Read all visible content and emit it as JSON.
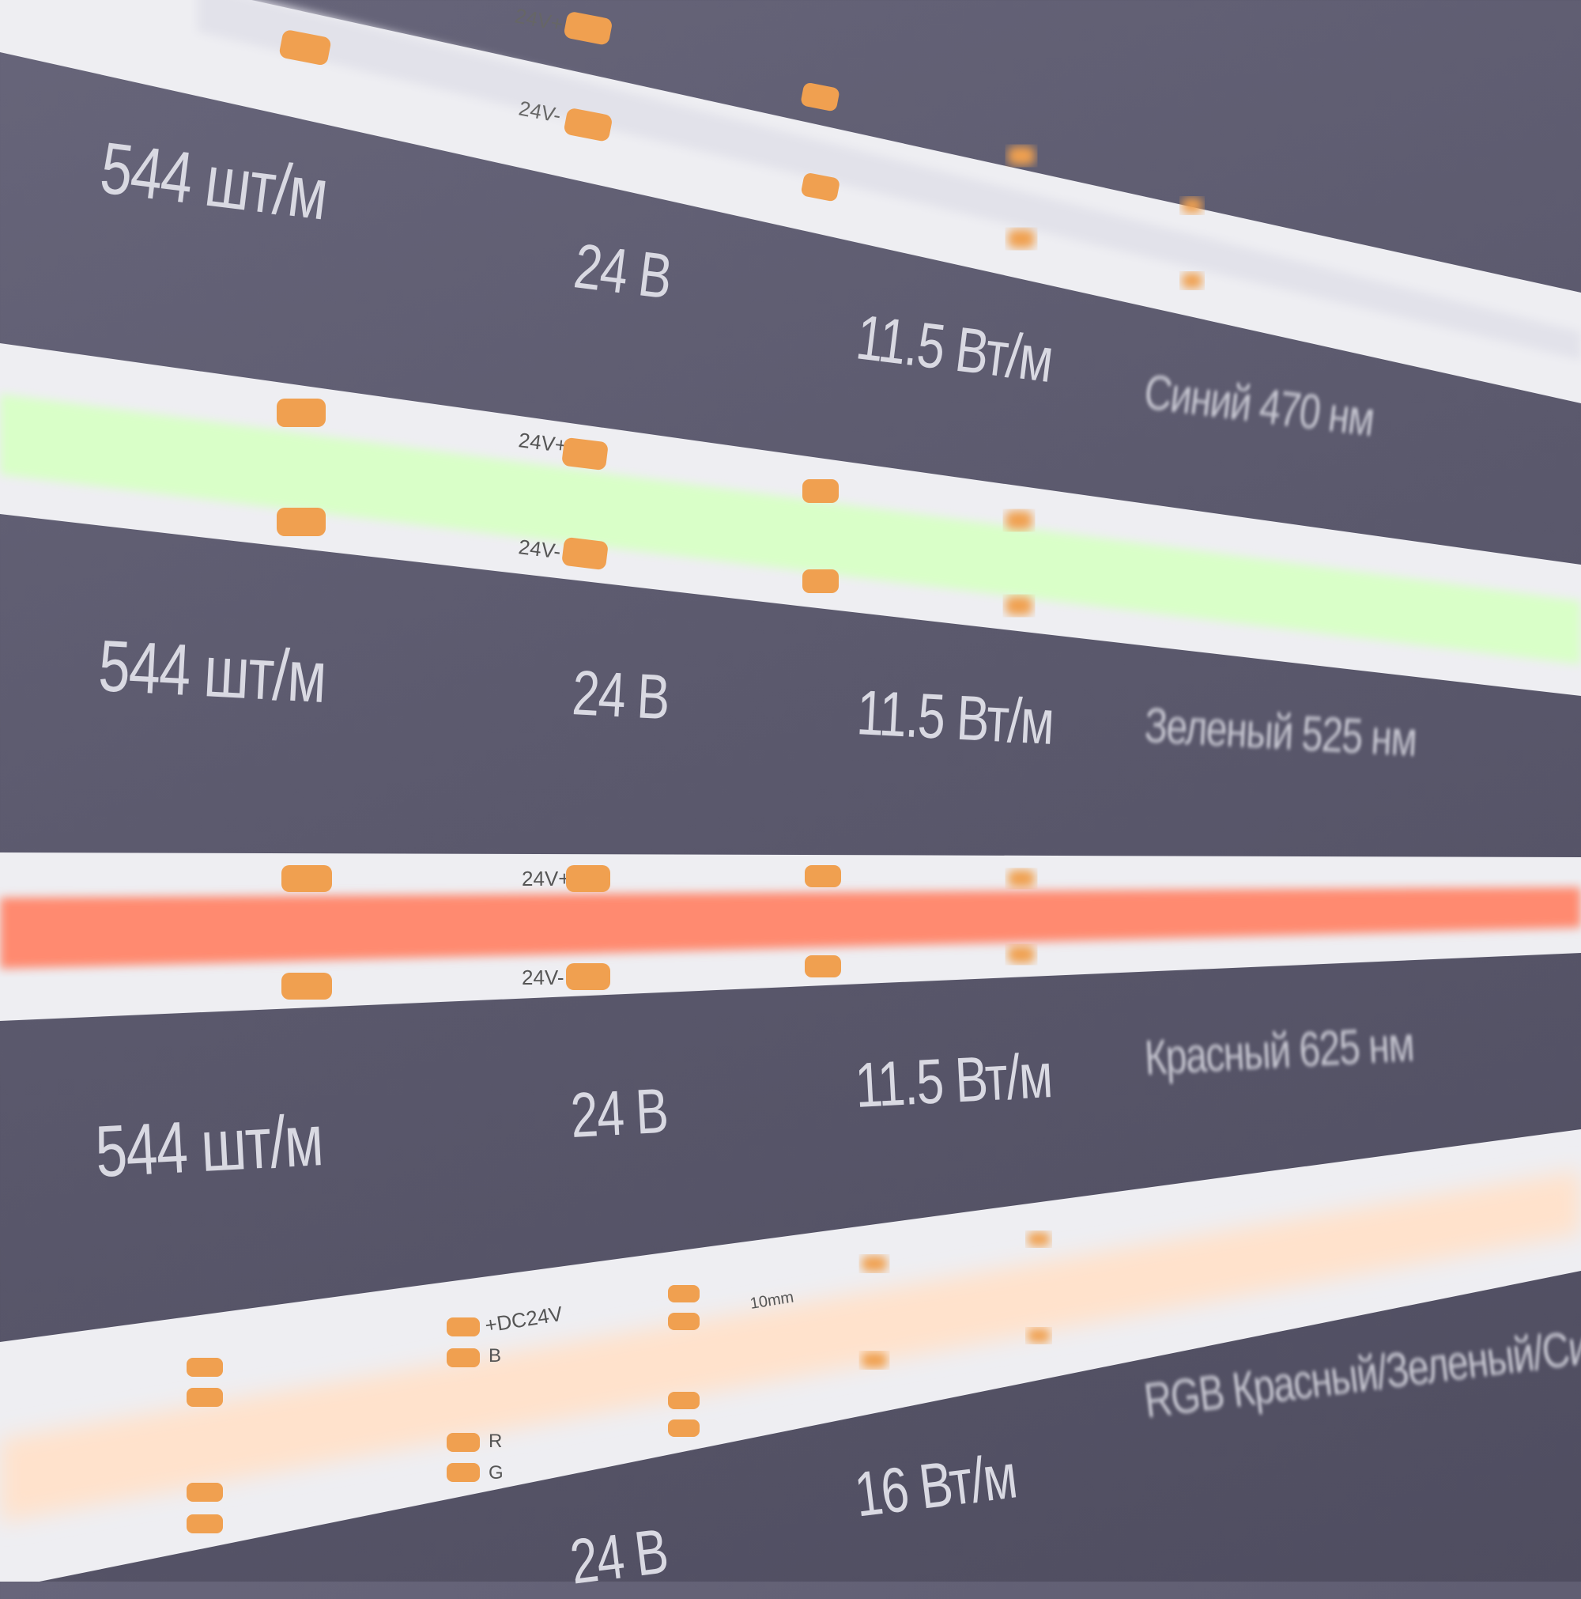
{
  "colors": {
    "background": "#5d5b6f",
    "strip_pcb": "#eeeef2",
    "solder_pad": "#f0a050",
    "glow_green": "#d9ffc8",
    "glow_red": "#ff8a70",
    "glow_rgb": "#ffe2cc",
    "label_text": "#d9d9e2"
  },
  "rows": [
    {
      "density": "544 шт/м",
      "voltage": "24 В",
      "power": "11.5 Вт/м",
      "color": "Синий 470 нм"
    },
    {
      "density": "544 шт/м",
      "voltage": "24 В",
      "power": "11.5 Вт/м",
      "color": "Зеленый 525 нм"
    },
    {
      "density": "544 шт/м",
      "voltage": "24 В",
      "power": "11.5 Вт/м",
      "color": "Красный 625 нм"
    },
    {
      "voltage": "24 В",
      "power": "16 Вт/м",
      "color": "RGB Красный/Зеленый/Синий"
    }
  ],
  "strip_markings": {
    "plus": "24V+",
    "minus": "24V-",
    "dc": "+DC24V",
    "r": "R",
    "g": "G",
    "b": "B",
    "pitch": "10mm"
  }
}
